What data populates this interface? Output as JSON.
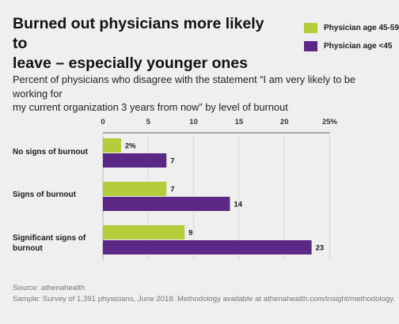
{
  "title": "Burned out physicians more likely to\nleave – especially younger ones",
  "subtitle": "Percent of physicians who disagree with the statement “I am very likely to be working for\nmy current organization 3 years from now” by level of burnout",
  "legend": [
    {
      "label": "Physician age 45-59",
      "color": "#b5cc3b"
    },
    {
      "label": "Physician age <45",
      "color": "#5b2886"
    }
  ],
  "source": "Source: athenahealth",
  "sample": "Sample: Survey of 1,391 physicians, June 2018. Methodology available at athenahealth.com/insight/methodology.",
  "chart_data": {
    "type": "bar",
    "orientation": "horizontal",
    "categories": [
      "No signs of burnout",
      "Signs of burnout",
      "Significant signs of\nburnout"
    ],
    "series": [
      {
        "name": "Physician age 45-59",
        "values": [
          2,
          7,
          9
        ],
        "labels": [
          "2%",
          "7",
          "9"
        ],
        "color": "#b5cc3b"
      },
      {
        "name": "Physician age <45",
        "values": [
          7,
          14,
          23
        ],
        "labels": [
          "7",
          "14",
          "23"
        ],
        "color": "#5b2886"
      }
    ],
    "xlim": [
      0,
      25
    ],
    "ticks": [
      0,
      5,
      10,
      15,
      20,
      25
    ],
    "tick_labels": [
      "0",
      "5",
      "10",
      "15",
      "20",
      "25%"
    ],
    "grid": true,
    "legend_position": "top-right"
  }
}
